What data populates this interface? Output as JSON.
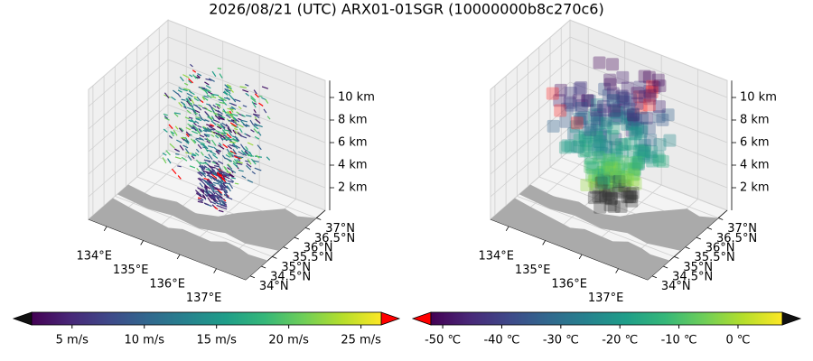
{
  "title": "2026/08/21 (UTC) ARX01-01SGR (10000000b8c270c6)",
  "chart_data": [
    {
      "type": "quiver3d",
      "xlim": [
        133.5,
        137.8
      ],
      "ylim": [
        33.8,
        37.4
      ],
      "zlim": [
        0,
        11.5
      ],
      "xticks": [
        {
          "value": 134,
          "label": "134°E"
        },
        {
          "value": 135,
          "label": "135°E"
        },
        {
          "value": 136,
          "label": "136°E"
        },
        {
          "value": 137,
          "label": "137°E"
        }
      ],
      "yticks": [
        {
          "value": 34,
          "label": "34°N"
        },
        {
          "value": 34.5,
          "label": "34.5°N"
        },
        {
          "value": 35,
          "label": "35°N"
        },
        {
          "value": 35.5,
          "label": "35.5°N"
        },
        {
          "value": 36,
          "label": "36°N"
        },
        {
          "value": 36.5,
          "label": "36.5°N"
        },
        {
          "value": 37,
          "label": "37°N"
        }
      ],
      "zticks": [
        {
          "value": 2,
          "label": "2 km"
        },
        {
          "value": 4,
          "label": "4 km"
        },
        {
          "value": 6,
          "label": "6 km"
        },
        {
          "value": 8,
          "label": "8 km"
        },
        {
          "value": 10,
          "label": "10 km"
        }
      ],
      "colorbar": {
        "cmap": "viridis",
        "clim": [
          2.2,
          26.4
        ],
        "under_color": "#111111",
        "over_color": "#ff0000",
        "ticks": [
          {
            "value": 5,
            "label": "5 m/s"
          },
          {
            "value": 10,
            "label": "10 m/s"
          },
          {
            "value": 15,
            "label": "15 m/s"
          },
          {
            "value": 20,
            "label": "20 m/s"
          },
          {
            "value": 25,
            "label": "25 m/s"
          }
        ]
      }
    },
    {
      "type": "voxel3d",
      "xlim": [
        133.5,
        137.8
      ],
      "ylim": [
        33.8,
        37.4
      ],
      "zlim": [
        0,
        11.5
      ],
      "xticks": [
        {
          "value": 134,
          "label": "134°E"
        },
        {
          "value": 135,
          "label": "135°E"
        },
        {
          "value": 136,
          "label": "136°E"
        },
        {
          "value": 137,
          "label": "137°E"
        }
      ],
      "yticks": [
        {
          "value": 34,
          "label": "34°N"
        },
        {
          "value": 34.5,
          "label": "34.5°N"
        },
        {
          "value": 35,
          "label": "35°N"
        },
        {
          "value": 35.5,
          "label": "35.5°N"
        },
        {
          "value": 36,
          "label": "36°N"
        },
        {
          "value": 36.5,
          "label": "36.5°N"
        },
        {
          "value": 37,
          "label": "37°N"
        }
      ],
      "zticks": [
        {
          "value": 2,
          "label": "2 km"
        },
        {
          "value": 4,
          "label": "4 km"
        },
        {
          "value": 6,
          "label": "6 km"
        },
        {
          "value": 8,
          "label": "8 km"
        },
        {
          "value": 10,
          "label": "10 km"
        }
      ],
      "colorbar": {
        "cmap": "viridis",
        "clim": [
          -52,
          7.5
        ],
        "under_color": "#ff0000",
        "over_color": "#111111",
        "ticks": [
          {
            "value": -50,
            "label": "-50 ℃"
          },
          {
            "value": -40,
            "label": "-40 ℃"
          },
          {
            "value": -30,
            "label": "-30 ℃"
          },
          {
            "value": -20,
            "label": "-20 ℃"
          },
          {
            "value": -10,
            "label": "-10 ℃"
          },
          {
            "value": 0,
            "label": "0 ℃"
          }
        ]
      }
    }
  ]
}
